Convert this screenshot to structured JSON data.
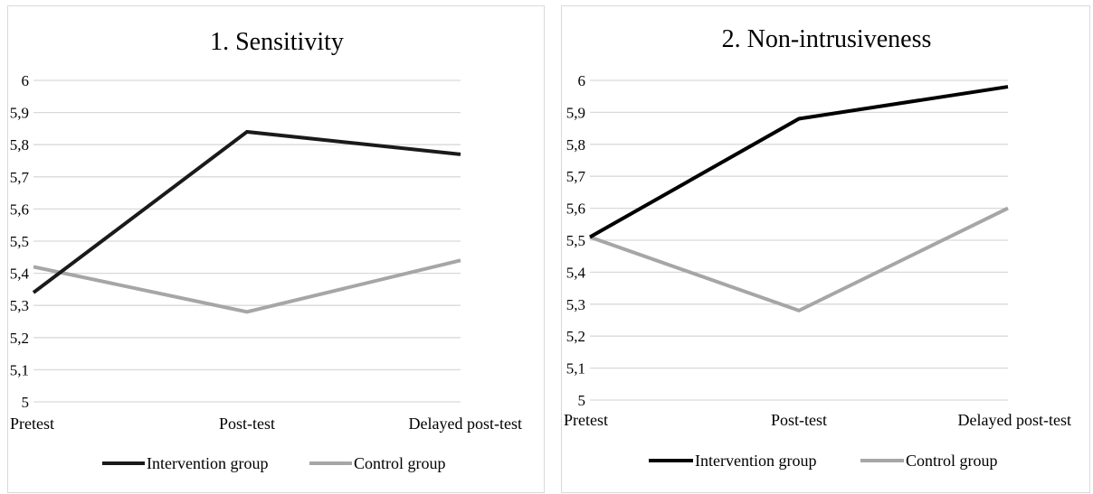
{
  "chart_data": [
    {
      "type": "line",
      "title": "1. Sensitivity",
      "categories": [
        "Pretest",
        "Post-test",
        "Delayed post-test"
      ],
      "ylim": [
        5,
        6
      ],
      "yticks": [
        "5",
        "5,1",
        "5,2",
        "5,3",
        "5,4",
        "5,5",
        "5,6",
        "5,7",
        "5,8",
        "5,9",
        "6"
      ],
      "grid": true,
      "legend_position": "bottom",
      "series": [
        {
          "name": "Intervention group",
          "values": [
            5.34,
            5.84,
            5.77
          ],
          "color": "#1a1a1a"
        },
        {
          "name": "Control group",
          "values": [
            5.42,
            5.28,
            5.44
          ],
          "color": "#a6a6a6"
        }
      ]
    },
    {
      "type": "line",
      "title": "2. Non-intrusiveness",
      "categories": [
        "Pretest",
        "Post-test",
        "Delayed post-test"
      ],
      "ylim": [
        5,
        6
      ],
      "yticks": [
        "5",
        "5,1",
        "5,2",
        "5,3",
        "5,4",
        "5,5",
        "5,6",
        "5,7",
        "5,8",
        "5,9",
        "6"
      ],
      "grid": true,
      "legend_position": "bottom",
      "series": [
        {
          "name": "Intervention group",
          "values": [
            5.51,
            5.88,
            5.98
          ],
          "color": "#000000"
        },
        {
          "name": "Control group",
          "values": [
            5.51,
            5.28,
            5.6
          ],
          "color": "#a6a6a6"
        }
      ]
    }
  ]
}
